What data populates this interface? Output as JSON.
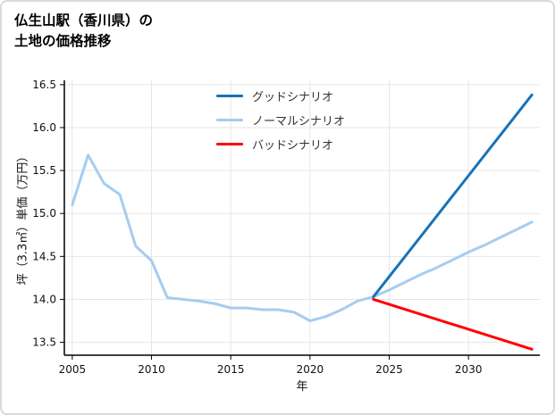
{
  "header": {
    "title_line1": "仏生山駅（香川県）の",
    "title_line2": "土地の価格推移"
  },
  "chart_data": {
    "type": "line",
    "title": "仏生山駅（香川県）の土地の価格推移",
    "xlabel": "年",
    "ylabel": "坪（3.3㎡）単価（万円）",
    "xlim": [
      2004.5,
      2034.5
    ],
    "ylim": [
      13.35,
      16.55
    ],
    "xticks": [
      2005,
      2010,
      2015,
      2020,
      2025,
      2030
    ],
    "yticks": [
      13.5,
      14.0,
      14.5,
      15.0,
      15.5,
      16.0,
      16.5
    ],
    "grid": true,
    "legend_position": "top-center-inside",
    "series": [
      {
        "name": "グッドシナリオ",
        "color": "#1673b9",
        "x": [
          2024,
          2034
        ],
        "values": [
          14.03,
          16.38
        ]
      },
      {
        "name": "ノーマルシナリオ",
        "color": "#a5cdf0",
        "x": [
          2005,
          2006,
          2007,
          2008,
          2009,
          2010,
          2011,
          2012,
          2013,
          2014,
          2015,
          2016,
          2017,
          2018,
          2019,
          2020,
          2021,
          2022,
          2023,
          2024,
          2025,
          2026,
          2027,
          2028,
          2029,
          2030,
          2031,
          2032,
          2033,
          2034
        ],
        "values": [
          15.1,
          15.68,
          15.35,
          15.22,
          14.62,
          14.45,
          14.02,
          14.0,
          13.98,
          13.95,
          13.9,
          13.9,
          13.88,
          13.88,
          13.85,
          13.75,
          13.8,
          13.88,
          13.98,
          14.03,
          14.11,
          14.2,
          14.29,
          14.37,
          14.46,
          14.55,
          14.63,
          14.72,
          14.81,
          14.9
        ]
      },
      {
        "name": "バッドシナリオ",
        "color": "#ff0000",
        "x": [
          2024,
          2034
        ],
        "values": [
          14.0,
          13.42
        ]
      }
    ]
  }
}
